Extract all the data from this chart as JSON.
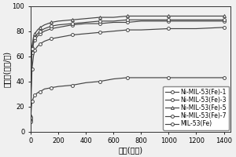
{
  "xlabel": "时间(分钟)",
  "ylabel": "吸附量(毫克/克)",
  "xlim": [
    0,
    1450
  ],
  "ylim": [
    0,
    100
  ],
  "xticks": [
    0,
    200,
    400,
    600,
    800,
    1000,
    1200,
    1400
  ],
  "yticks": [
    0,
    20,
    40,
    60,
    80,
    100
  ],
  "series": [
    {
      "label": "Ni-MIL-53(Fe)-1",
      "color": "#444444",
      "marker": "o",
      "x": [
        0,
        5,
        10,
        20,
        30,
        50,
        70,
        100,
        150,
        200,
        300,
        400,
        500,
        600,
        700,
        800,
        1000,
        1200,
        1400
      ],
      "y": [
        9,
        34,
        50,
        60,
        65,
        68,
        70,
        72,
        74,
        75,
        77,
        78,
        79,
        80,
        81,
        81,
        82,
        82,
        83
      ]
    },
    {
      "label": "Ni-MIL-53(Fe)-3",
      "color": "#444444",
      "marker": "o",
      "x": [
        0,
        5,
        10,
        20,
        30,
        50,
        70,
        100,
        150,
        200,
        300,
        400,
        500,
        600,
        700,
        800,
        1000,
        1200,
        1400
      ],
      "y": [
        11,
        52,
        63,
        70,
        73,
        76,
        78,
        80,
        82,
        83,
        85,
        86,
        86,
        87,
        87,
        88,
        88,
        88,
        88
      ]
    },
    {
      "label": "Ni-MIL-53(Fe)-5",
      "color": "#444444",
      "marker": "^",
      "x": [
        0,
        5,
        10,
        20,
        30,
        50,
        70,
        100,
        150,
        200,
        300,
        400,
        500,
        600,
        700,
        800,
        1000,
        1200,
        1400
      ],
      "y": [
        13,
        57,
        68,
        75,
        78,
        81,
        83,
        85,
        87,
        88,
        89,
        90,
        91,
        91,
        92,
        92,
        92,
        92,
        92
      ]
    },
    {
      "label": "Ni-MIL-53(Fe)-7",
      "color": "#444444",
      "marker": "o",
      "x": [
        0,
        5,
        10,
        20,
        30,
        50,
        70,
        100,
        150,
        200,
        300,
        400,
        500,
        600,
        700,
        800,
        1000,
        1200,
        1400
      ],
      "y": [
        11,
        54,
        66,
        72,
        75,
        78,
        80,
        82,
        84,
        85,
        86,
        87,
        88,
        88,
        89,
        89,
        89,
        89,
        89
      ]
    },
    {
      "label": "MIL-53(Fe)",
      "color": "#444444",
      "marker": "o",
      "x": [
        0,
        5,
        10,
        20,
        30,
        50,
        70,
        100,
        150,
        200,
        300,
        400,
        500,
        600,
        700,
        800,
        1000,
        1200,
        1400
      ],
      "y": [
        8,
        19,
        24,
        27,
        29,
        31,
        32,
        34,
        35,
        36,
        37,
        39,
        40,
        42,
        43,
        43,
        43,
        43,
        43
      ]
    }
  ],
  "background_color": "#f0f0f0",
  "plot_bg_color": "#f0f0f0",
  "legend_fontsize": 5.5,
  "axis_label_fontsize": 7,
  "tick_fontsize": 6
}
